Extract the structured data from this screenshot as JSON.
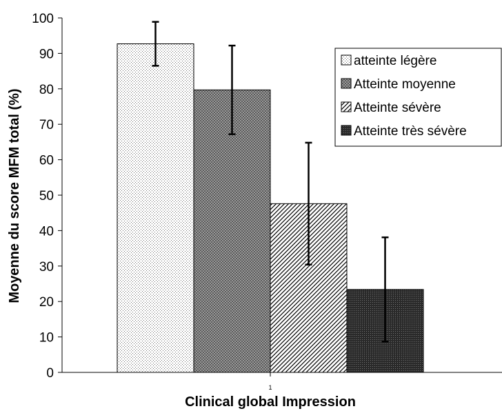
{
  "chart_data": {
    "type": "bar",
    "categories": [
      "1"
    ],
    "series": [
      {
        "name": "atteinte légère",
        "values": [
          92.7
        ],
        "error": [
          6.2
        ],
        "pattern": "dots"
      },
      {
        "name": "Atteinte moyenne",
        "values": [
          79.7
        ],
        "error": [
          12.5
        ],
        "pattern": "crosshatch"
      },
      {
        "name": "Atteinte sévère",
        "values": [
          47.6
        ],
        "error": [
          17.2
        ],
        "pattern": "diagonal"
      },
      {
        "name": "Atteinte très sévère",
        "values": [
          23.4
        ],
        "error": [
          14.7
        ],
        "pattern": "dense"
      }
    ],
    "xlabel": "Clinical global Impression",
    "ylabel": "Moyenne du score MFM total (%)",
    "ylim": [
      0,
      100
    ],
    "yticks": [
      "0",
      "10",
      "20",
      "30",
      "40",
      "50",
      "60",
      "70",
      "80",
      "90",
      "100"
    ],
    "grid": false,
    "legend_position": "right"
  }
}
